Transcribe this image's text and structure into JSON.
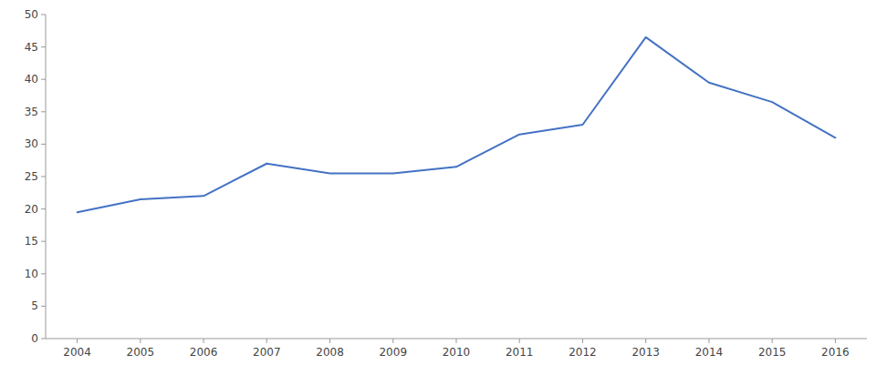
{
  "chart_data": {
    "type": "line",
    "x": [
      2004,
      2005,
      2006,
      2007,
      2008,
      2009,
      2010,
      2011,
      2012,
      2013,
      2014,
      2015,
      2016
    ],
    "values": [
      19.5,
      21.5,
      22.0,
      27.0,
      25.5,
      25.5,
      26.5,
      31.5,
      33.0,
      46.5,
      39.5,
      36.5,
      31.0
    ],
    "color": "#4472C4",
    "xlim": [
      2003.5,
      2016.5
    ],
    "ylim": [
      0,
      50
    ],
    "xticks": [
      2004,
      2005,
      2006,
      2007,
      2008,
      2009,
      2010,
      2011,
      2012,
      2013,
      2014,
      2015,
      2016
    ],
    "yticks": [
      0,
      5,
      10,
      15,
      20,
      25,
      30,
      35,
      40,
      45,
      50
    ],
    "grid": false
  }
}
